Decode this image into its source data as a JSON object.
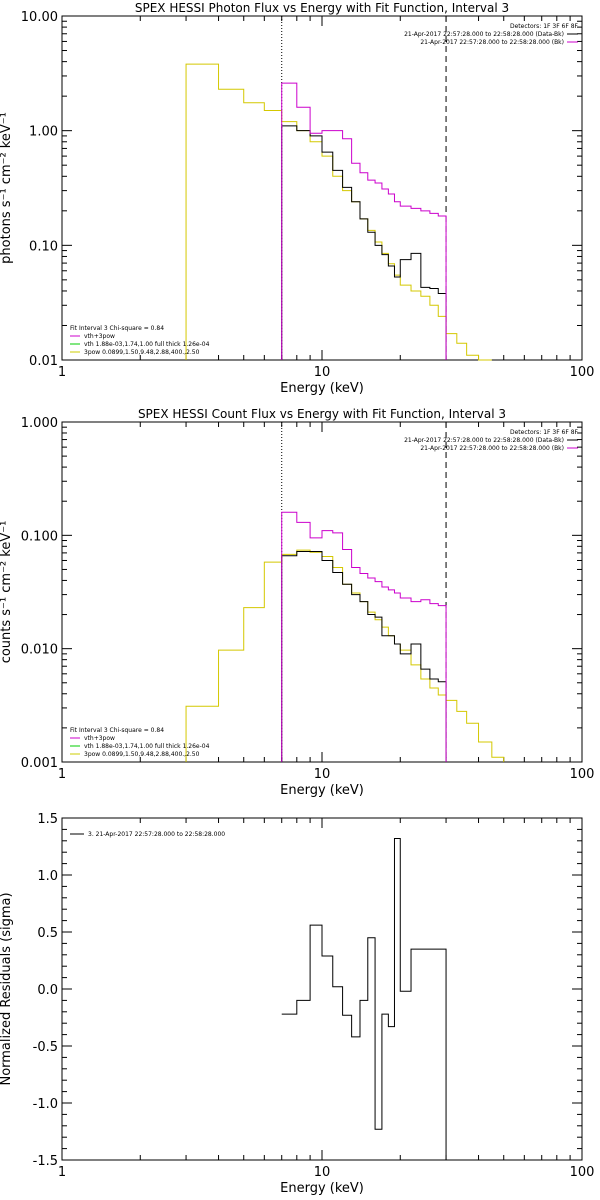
{
  "chart_data": [
    {
      "type": "line",
      "title": "SPEX HESSI Photon Flux vs Energy with Fit Function, Interval 3",
      "xlabel": "Energy (keV)",
      "ylabel": "photons s⁻¹ cm⁻² keV⁻¹",
      "xscale": "log",
      "yscale": "log",
      "xlim": [
        1,
        100
      ],
      "ylim": [
        0.01,
        10
      ],
      "x_ticks": [
        "1",
        "10",
        "100"
      ],
      "y_ticks": [
        "0.01",
        "0.10",
        "1.00",
        "10.00"
      ],
      "vlines": [
        {
          "x": 7,
          "style": "dotted"
        },
        {
          "x": 30,
          "style": "dashed"
        }
      ],
      "legend_tr": {
        "header": "Detectors: 1F 3F 6F 8F",
        "lines": [
          "21-Apr-2017 22:57:28.000 to 22:58:28.000 (Data-Bk)",
          "21-Apr-2017 22:57:28.000 to 22:58:28.000 (Bk)"
        ],
        "colors": [
          "#000000",
          "#cc00cc"
        ]
      },
      "legend_bl": {
        "header": "Fit Interval 3   Chi-square = 0.84",
        "lines": [
          "vth+3pow",
          "vth 1.88e-03,1.74,1.00  full thick 1.26e-04",
          "3pow 0.0899,1.50,9.48,2.88,400.,2.50"
        ],
        "colors": [
          "#cc00cc",
          "#00cc00",
          "#cccc00"
        ]
      },
      "series": [
        {
          "color": "#d4c800",
          "edges": [
            3,
            4,
            5,
            6,
            7,
            8,
            9,
            10,
            11,
            12,
            13,
            14,
            15,
            16,
            17,
            18,
            19,
            20,
            22,
            24,
            26,
            28,
            30,
            33,
            36,
            40,
            45
          ],
          "values": [
            3.8,
            2.3,
            1.75,
            1.5,
            1.2,
            1.0,
            0.8,
            0.6,
            0.4,
            0.3,
            0.24,
            0.17,
            0.135,
            0.107,
            0.085,
            0.069,
            0.055,
            0.045,
            0.04,
            0.036,
            0.03,
            0.024,
            0.017,
            0.014,
            0.011,
            0.01
          ]
        },
        {
          "color": "#000000",
          "edges": [
            7,
            8,
            9,
            10,
            11,
            12,
            13,
            14,
            15,
            16,
            17,
            18,
            19,
            20,
            22,
            24,
            26,
            28,
            30
          ],
          "values": [
            1.1,
            1.0,
            0.9,
            0.65,
            0.45,
            0.32,
            0.24,
            0.17,
            0.13,
            0.1,
            0.083,
            0.066,
            0.053,
            0.075,
            0.085,
            0.043,
            0.042,
            0.038
          ]
        },
        {
          "color": "#cc00cc",
          "edges": [
            7,
            8,
            9,
            10,
            11,
            12,
            13,
            14,
            15,
            16,
            17,
            18,
            19,
            20,
            22,
            24,
            26,
            28,
            30
          ],
          "values": [
            2.6,
            1.6,
            0.95,
            1.0,
            1.0,
            0.85,
            0.52,
            0.43,
            0.37,
            0.35,
            0.31,
            0.28,
            0.24,
            0.22,
            0.21,
            0.2,
            0.19,
            0.18
          ]
        }
      ]
    },
    {
      "type": "line",
      "title": "SPEX HESSI Count Flux vs Energy with Fit Function, Interval 3",
      "xlabel": "Energy (keV)",
      "ylabel": "counts s⁻¹ cm⁻² keV⁻¹",
      "xscale": "log",
      "yscale": "log",
      "xlim": [
        1,
        100
      ],
      "ylim": [
        0.001,
        1
      ],
      "x_ticks": [
        "1",
        "10",
        "100"
      ],
      "y_ticks": [
        "0.001",
        "0.010",
        "0.100",
        "1.000"
      ],
      "vlines": [
        {
          "x": 7,
          "style": "dotted"
        },
        {
          "x": 30,
          "style": "dashed"
        }
      ],
      "legend_tr": {
        "header": "Detectors: 1F 3F 6F 8F",
        "lines": [
          "21-Apr-2017 22:57:28.000 to 22:58:28.000 (Data-Bk)",
          "21-Apr-2017 22:57:28.000 to 22:58:28.000 (Bk)"
        ],
        "colors": [
          "#000000",
          "#cc00cc"
        ]
      },
      "legend_bl": {
        "header": "Fit Interval 3   Chi-square = 0.84",
        "lines": [
          "vth+3pow",
          "vth 1.88e-03,1.74,1.00  full thick 1.26e-04",
          "3pow 0.0899,1.50,9.48,2.88,400.,2.50"
        ],
        "colors": [
          "#cc00cc",
          "#00cc00",
          "#cccc00"
        ]
      },
      "series": [
        {
          "color": "#d4c800",
          "edges": [
            3,
            4,
            5,
            6,
            7,
            8,
            9,
            10,
            11,
            12,
            13,
            14,
            15,
            16,
            17,
            18,
            19,
            20,
            22,
            24,
            26,
            28,
            30,
            33,
            36,
            40,
            45,
            50
          ],
          "values": [
            0.0031,
            0.0097,
            0.023,
            0.058,
            0.068,
            0.074,
            0.071,
            0.065,
            0.052,
            0.037,
            0.031,
            0.026,
            0.021,
            0.018,
            0.0155,
            0.013,
            0.011,
            0.0097,
            0.0072,
            0.0054,
            0.0045,
            0.0039,
            0.0035,
            0.0028,
            0.0022,
            0.0015,
            0.0011
          ]
        },
        {
          "color": "#000000",
          "edges": [
            7,
            8,
            9,
            10,
            11,
            12,
            13,
            14,
            15,
            16,
            17,
            18,
            19,
            20,
            22,
            24,
            26,
            28,
            30
          ],
          "values": [
            0.066,
            0.072,
            0.072,
            0.06,
            0.047,
            0.037,
            0.03,
            0.026,
            0.02,
            0.019,
            0.013,
            0.013,
            0.011,
            0.009,
            0.011,
            0.0066,
            0.0054,
            0.0051
          ]
        },
        {
          "color": "#cc00cc",
          "edges": [
            7,
            8,
            9,
            10,
            11,
            12,
            13,
            14,
            15,
            16,
            17,
            18,
            19,
            20,
            22,
            24,
            26,
            28,
            30
          ],
          "values": [
            0.16,
            0.13,
            0.095,
            0.11,
            0.105,
            0.075,
            0.052,
            0.046,
            0.042,
            0.039,
            0.035,
            0.033,
            0.031,
            0.028,
            0.026,
            0.027,
            0.025,
            0.024
          ]
        }
      ]
    },
    {
      "type": "line",
      "title": "",
      "xlabel": "Energy (keV)",
      "ylabel": "Normalized Residuals (sigma)",
      "xscale": "log",
      "yscale": "linear",
      "xlim": [
        1,
        100
      ],
      "ylim": [
        -1.5,
        1.5
      ],
      "x_ticks": [
        "1",
        "10",
        "100"
      ],
      "y_ticks": [
        "-1.5",
        "-1.0",
        "-0.5",
        "0.0",
        "0.5",
        "1.0",
        "1.5"
      ],
      "legend_tl": {
        "lines": [
          "3. 21-Apr-2017 22:57:28.000 to 22:58:28.000"
        ],
        "colors": [
          "#000000"
        ]
      },
      "series": [
        {
          "color": "#000000",
          "edges": [
            7,
            8,
            9,
            10,
            11,
            12,
            13,
            14,
            15,
            16,
            17,
            18,
            19,
            20,
            22,
            24,
            26,
            28,
            30
          ],
          "values": [
            -0.22,
            -0.1,
            0.56,
            0.29,
            0.02,
            -0.23,
            -0.42,
            -0.1,
            0.45,
            -1.23,
            -0.22,
            -0.33,
            1.32,
            -0.02,
            0.35,
            0.35,
            0.35,
            0.35
          ]
        }
      ]
    }
  ]
}
